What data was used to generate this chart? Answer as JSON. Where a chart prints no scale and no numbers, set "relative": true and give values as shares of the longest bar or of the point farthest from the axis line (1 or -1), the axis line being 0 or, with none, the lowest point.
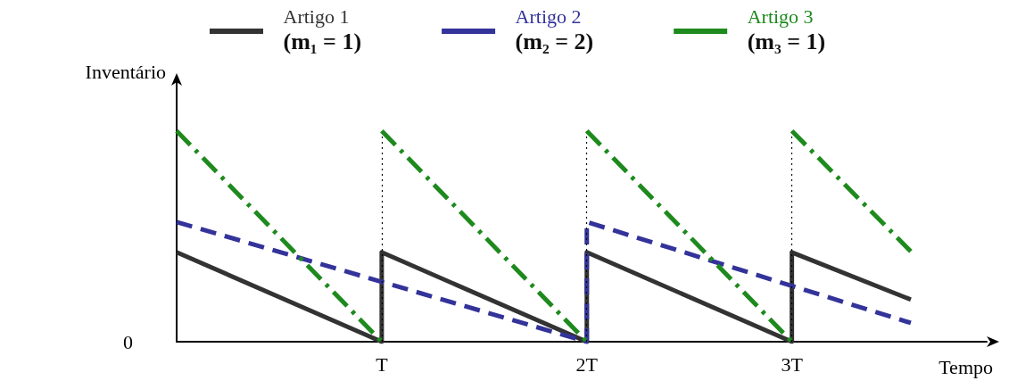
{
  "chart_data": {
    "type": "line",
    "relative": true,
    "xlabel": "Tempo",
    "ylabel": "Inventário",
    "legend": "top",
    "grid": false,
    "marker": "none",
    "xlim": [
      0,
      3.95
    ],
    "xticks": [
      {
        "value": 1,
        "label": "T"
      },
      {
        "value": 2,
        "label": "2T"
      },
      {
        "value": 3,
        "label": "3T"
      }
    ],
    "annotations": [
      "0"
    ],
    "ref_lines": [
      {
        "axis": "x",
        "value": 1,
        "label": null,
        "color": "#000000",
        "line_style": "dotted"
      },
      {
        "axis": "x",
        "value": 2,
        "label": null,
        "color": "#000000",
        "line_style": "dotted"
      },
      {
        "axis": "x",
        "value": 3,
        "label": null,
        "color": "#000000",
        "line_style": "dotted"
      }
    ],
    "series": [
      {
        "name": "Artigo 1 (m₁ = 1)",
        "color": "#333333",
        "line_style": "solid",
        "x": [
          0,
          1,
          1,
          2,
          2,
          3,
          3,
          3.58
        ],
        "values": [
          0.424,
          0,
          0.424,
          0,
          0.424,
          0,
          0.424,
          0.2
        ]
      },
      {
        "name": "Artigo 2 (m₂ = 2)",
        "color": "#33339a",
        "line_style": "dashed",
        "x": [
          0,
          2,
          2,
          3.58
        ],
        "values": [
          0.568,
          0,
          0.568,
          0.089
        ]
      },
      {
        "name": "Artigo 3 (m₃ = 1)",
        "color": "#1e8a1e",
        "line_style": "dashdot",
        "x": [
          0,
          1,
          null,
          1,
          2,
          null,
          2,
          3,
          null,
          3,
          3.58
        ],
        "values": [
          1,
          0,
          null,
          1,
          0,
          null,
          1,
          0,
          null,
          1,
          0.428
        ]
      }
    ]
  }
}
